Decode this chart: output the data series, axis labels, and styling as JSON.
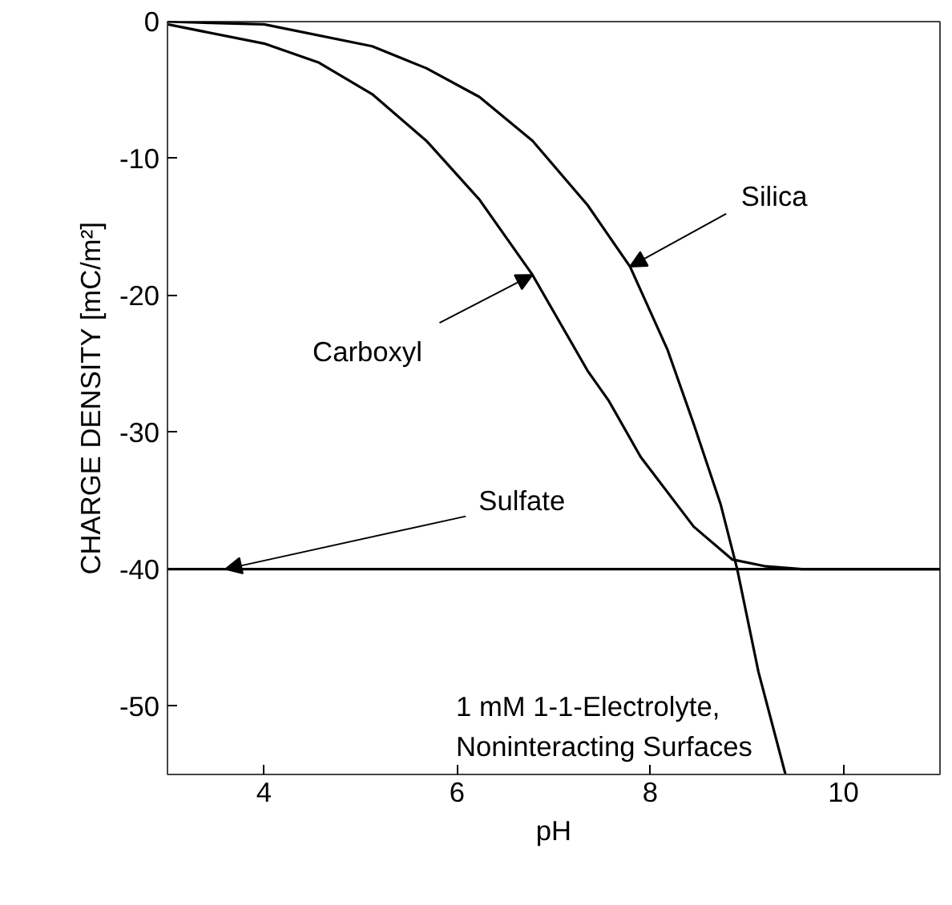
{
  "chart_data": {
    "type": "line",
    "xlabel": "pH",
    "ylabel": "CHARGE DENSITY [mC/m²]",
    "xlim": [
      3,
      11
    ],
    "ylim": [
      -55,
      0
    ],
    "xticks": [
      4,
      6,
      8,
      10
    ],
    "yticks": [
      0,
      -10,
      -20,
      -30,
      -40,
      -50
    ],
    "grid": false,
    "marker": "none",
    "line_style": "solid",
    "series": [
      {
        "color": "#000000",
        "x": [
          3,
          4,
          4.57,
          5.12,
          5.68,
          6.23,
          6.78,
          7.35,
          7.57,
          7.9,
          8.45,
          8.85,
          9.2,
          9.57,
          10,
          11
        ],
        "values": [
          -0.2,
          -1.6,
          -3,
          -5.3,
          -8.7,
          -13,
          -18.5,
          -25.5,
          -27.7,
          -31.8,
          -36.9,
          -39.3,
          -39.8,
          -40,
          -40,
          -40
        ]
      },
      {
        "color": "#000000",
        "x": [
          3,
          4,
          5.12,
          5.68,
          6.23,
          6.78,
          7.35,
          7.79,
          8.18,
          8.45,
          8.73,
          8.9,
          9.12,
          9.4
        ],
        "values": [
          0,
          -0.2,
          -1.8,
          -3.4,
          -5.5,
          -8.7,
          -13.4,
          -17.9,
          -24,
          -29.4,
          -35.3,
          -40,
          -47.5,
          -55
        ]
      },
      {
        "color": "#000000",
        "x": [
          3,
          11
        ],
        "values": [
          -40,
          -40
        ]
      }
    ],
    "annotations": [
      {
        "text": "Carboxyl",
        "x": 6.78,
        "y": -18.5
      },
      {
        "text": "Silica",
        "x": 7.79,
        "y": -17.9
      },
      {
        "text": "Sulfate",
        "x": 3.6,
        "y": -40
      },
      "1 mM 1-1-Electrolyte,\nNoninteracting Surfaces"
    ]
  }
}
